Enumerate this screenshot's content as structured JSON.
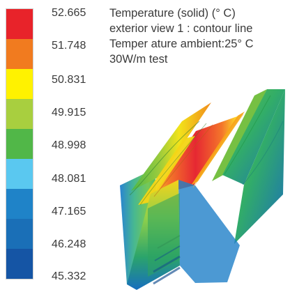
{
  "legend": {
    "colors": [
      "#e8232a",
      "#f17b1f",
      "#fff200",
      "#a8cf3f",
      "#51b748",
      "#5ac8f0",
      "#1f83c8",
      "#1a6fb7",
      "#1555a5"
    ],
    "ticks": [
      "52.665",
      "51.748",
      "50.831",
      "49.915",
      "48.998",
      "48.081",
      "47.165",
      "46.248",
      "45.332"
    ]
  },
  "info": {
    "line1": "Temperature (solid) (° C)",
    "line2": "exterior view 1 : contour line",
    "line3": "Temper ature ambient:25° C",
    "line4": "30W/m test"
  }
}
